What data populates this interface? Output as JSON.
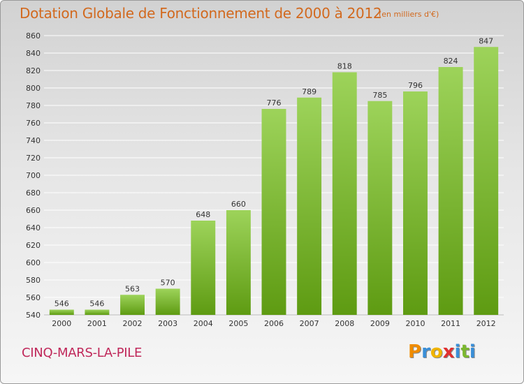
{
  "title": "Dotation Globale de Fonctionnement de 2000 à 2012",
  "unit": "(en milliers d'€)",
  "town": "CINQ-MARS-LA-PILE",
  "logo": {
    "letters": [
      {
        "text": "P",
        "color": "#f08c00"
      },
      {
        "text": "r",
        "color": "#3a8fd8"
      },
      {
        "text": "o",
        "color": "#f0b400"
      },
      {
        "text": "x",
        "color": "#e03030"
      },
      {
        "text": "i",
        "color": "#3a8fd8"
      },
      {
        "text": "t",
        "color": "#7cb82f"
      },
      {
        "text": "i",
        "color": "#3a8fd8"
      }
    ]
  },
  "colors": {
    "bar_top": "#9dd35a",
    "bar_bottom": "#5e9b12",
    "grid": "#ffffff",
    "axis_text": "#333333"
  },
  "chart_data": {
    "type": "bar",
    "title": "Dotation Globale de Fonctionnement de 2000 à 2012",
    "categories": [
      "2000",
      "2001",
      "2002",
      "2003",
      "2004",
      "2005",
      "2006",
      "2007",
      "2008",
      "2009",
      "2010",
      "2011",
      "2012"
    ],
    "values": [
      546,
      546,
      563,
      570,
      648,
      660,
      776,
      789,
      818,
      785,
      796,
      824,
      847
    ],
    "ylim": [
      540,
      860
    ],
    "yticks": [
      540,
      560,
      580,
      600,
      620,
      640,
      660,
      680,
      700,
      720,
      740,
      760,
      780,
      800,
      820,
      840,
      860
    ],
    "grid": true,
    "xlabel": "",
    "ylabel": ""
  }
}
